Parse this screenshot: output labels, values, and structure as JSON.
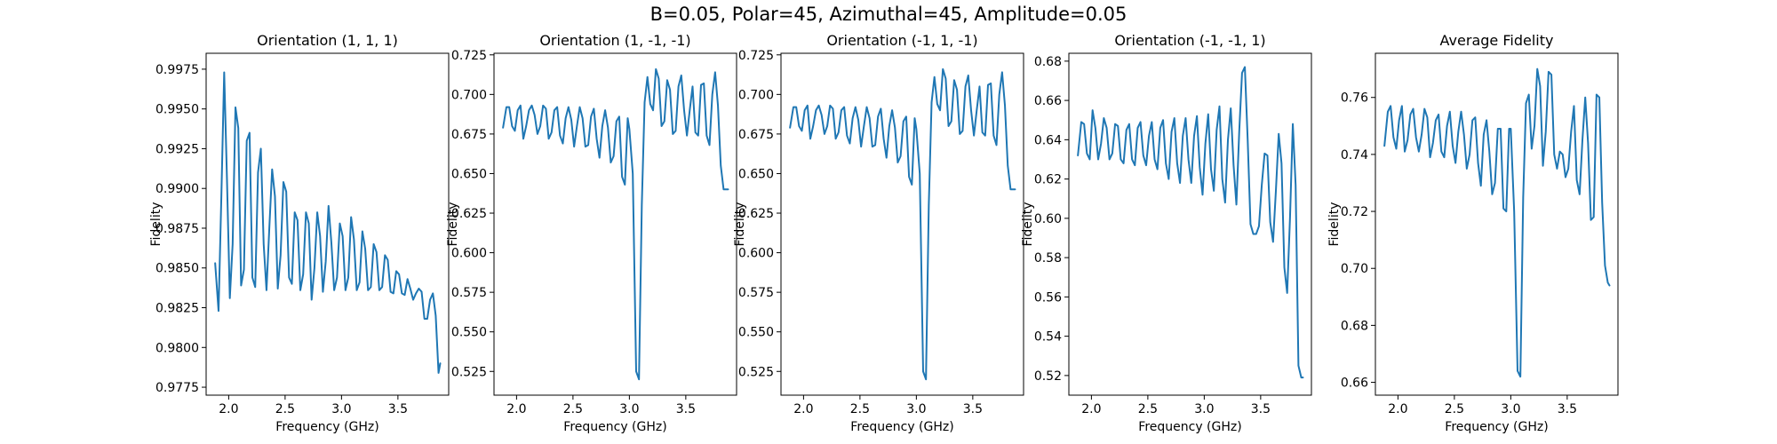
{
  "figure": {
    "title": "B=0.05, Polar=45, Azimuthal=45, Amplitude=0.05"
  },
  "chart_data": [
    {
      "type": "line",
      "title": "Orientation (1, 1, 1)",
      "xlabel": "Frequency (GHz)",
      "ylabel": "Fidelity",
      "xlim": [
        1.8,
        3.95
      ],
      "ylim": [
        0.977,
        0.9985
      ],
      "xticks": [
        2.0,
        2.5,
        3.0,
        3.5
      ],
      "xtick_labels": [
        "2.0",
        "2.5",
        "3.0",
        "3.5"
      ],
      "yticks": [
        0.9775,
        0.98,
        0.9825,
        0.985,
        0.9875,
        0.99,
        0.9925,
        0.995,
        0.9975
      ],
      "ytick_labels": [
        "0.9775",
        "0.9800",
        "0.9825",
        "0.9850",
        "0.9875",
        "0.9900",
        "0.9925",
        "0.9950",
        "0.9975"
      ],
      "grid": false,
      "color": "#1f77b4",
      "series": [
        {
          "x": [
            1.88,
            1.91,
            1.935,
            1.96,
            1.985,
            2.01,
            2.035,
            2.06,
            2.085,
            2.11,
            2.135,
            2.16,
            2.185,
            2.21,
            2.235,
            2.26,
            2.285,
            2.31,
            2.335,
            2.36,
            2.385,
            2.41,
            2.435,
            2.46,
            2.485,
            2.51,
            2.535,
            2.56,
            2.585,
            2.61,
            2.635,
            2.66,
            2.685,
            2.71,
            2.735,
            2.76,
            2.785,
            2.81,
            2.835,
            2.86,
            2.885,
            2.91,
            2.935,
            2.96,
            2.985,
            3.01,
            3.035,
            3.06,
            3.085,
            3.11,
            3.135,
            3.16,
            3.185,
            3.21,
            3.235,
            3.26,
            3.285,
            3.31,
            3.335,
            3.36,
            3.385,
            3.41,
            3.435,
            3.46,
            3.485,
            3.51,
            3.535,
            3.56,
            3.585,
            3.61,
            3.635,
            3.66,
            3.685,
            3.71,
            3.735,
            3.76,
            3.785,
            3.81,
            3.835,
            3.86,
            3.875
          ],
          "y": [
            0.9853,
            0.9823,
            0.9895,
            0.9973,
            0.9905,
            0.9831,
            0.9865,
            0.9951,
            0.9938,
            0.9839,
            0.9849,
            0.993,
            0.9935,
            0.9844,
            0.9838,
            0.991,
            0.9925,
            0.9865,
            0.9836,
            0.9875,
            0.9912,
            0.9895,
            0.9837,
            0.9858,
            0.9904,
            0.9898,
            0.9844,
            0.984,
            0.9885,
            0.988,
            0.9836,
            0.9846,
            0.9885,
            0.9878,
            0.983,
            0.985,
            0.9885,
            0.987,
            0.9835,
            0.9854,
            0.9889,
            0.9866,
            0.9836,
            0.9844,
            0.9878,
            0.987,
            0.9836,
            0.9844,
            0.9882,
            0.9868,
            0.9836,
            0.9841,
            0.9873,
            0.9862,
            0.9836,
            0.9838,
            0.9865,
            0.986,
            0.9836,
            0.9838,
            0.9858,
            0.9855,
            0.9835,
            0.9834,
            0.9848,
            0.9846,
            0.9834,
            0.9833,
            0.9843,
            0.9837,
            0.983,
            0.9834,
            0.9837,
            0.9835,
            0.9818,
            0.9818,
            0.983,
            0.9834,
            0.982,
            0.9784,
            0.979
          ]
        }
      ]
    },
    {
      "type": "line",
      "title": "Orientation (1, -1, -1)",
      "xlabel": "Frequency (GHz)",
      "ylabel": "Fidelity",
      "xlim": [
        1.8,
        3.95
      ],
      "ylim": [
        0.51,
        0.726
      ],
      "xticks": [
        2.0,
        2.5,
        3.0,
        3.5
      ],
      "xtick_labels": [
        "2.0",
        "2.5",
        "3.0",
        "3.5"
      ],
      "yticks": [
        0.525,
        0.55,
        0.575,
        0.6,
        0.625,
        0.65,
        0.675,
        0.7,
        0.725
      ],
      "ytick_labels": [
        "0.525",
        "0.550",
        "0.575",
        "0.600",
        "0.625",
        "0.650",
        "0.675",
        "0.700",
        "0.725"
      ],
      "grid": false,
      "color": "#1f77b4",
      "series": [
        {
          "x": [
            1.88,
            1.91,
            1.935,
            1.96,
            1.985,
            2.01,
            2.035,
            2.06,
            2.085,
            2.11,
            2.135,
            2.16,
            2.185,
            2.21,
            2.235,
            2.26,
            2.285,
            2.31,
            2.335,
            2.36,
            2.385,
            2.41,
            2.435,
            2.46,
            2.485,
            2.51,
            2.535,
            2.56,
            2.585,
            2.61,
            2.635,
            2.66,
            2.685,
            2.71,
            2.735,
            2.76,
            2.785,
            2.81,
            2.835,
            2.86,
            2.885,
            2.91,
            2.935,
            2.96,
            2.985,
            3.0,
            3.03,
            3.06,
            3.085,
            3.11,
            3.135,
            3.16,
            3.185,
            3.21,
            3.235,
            3.26,
            3.285,
            3.31,
            3.335,
            3.36,
            3.385,
            3.41,
            3.435,
            3.46,
            3.485,
            3.51,
            3.535,
            3.56,
            3.585,
            3.61,
            3.635,
            3.66,
            3.685,
            3.71,
            3.735,
            3.76,
            3.785,
            3.81,
            3.835,
            3.86,
            3.875
          ],
          "y": [
            0.679,
            0.692,
            0.692,
            0.68,
            0.677,
            0.69,
            0.693,
            0.672,
            0.68,
            0.69,
            0.693,
            0.687,
            0.675,
            0.68,
            0.693,
            0.691,
            0.672,
            0.676,
            0.69,
            0.692,
            0.674,
            0.669,
            0.685,
            0.692,
            0.684,
            0.667,
            0.68,
            0.692,
            0.685,
            0.667,
            0.668,
            0.686,
            0.691,
            0.672,
            0.66,
            0.68,
            0.69,
            0.679,
            0.657,
            0.661,
            0.683,
            0.686,
            0.648,
            0.643,
            0.685,
            0.678,
            0.65,
            0.525,
            0.52,
            0.63,
            0.695,
            0.711,
            0.694,
            0.69,
            0.716,
            0.71,
            0.68,
            0.683,
            0.709,
            0.703,
            0.675,
            0.677,
            0.705,
            0.712,
            0.69,
            0.674,
            0.69,
            0.705,
            0.676,
            0.674,
            0.706,
            0.707,
            0.674,
            0.668,
            0.7,
            0.714,
            0.693,
            0.655,
            0.64,
            0.64,
            0.64
          ]
        }
      ]
    },
    {
      "type": "line",
      "title": "Orientation (-1, 1, -1)",
      "xlabel": "Frequency (GHz)",
      "ylabel": "Fidelity",
      "xlim": [
        1.8,
        3.95
      ],
      "ylim": [
        0.51,
        0.726
      ],
      "xticks": [
        2.0,
        2.5,
        3.0,
        3.5
      ],
      "xtick_labels": [
        "2.0",
        "2.5",
        "3.0",
        "3.5"
      ],
      "yticks": [
        0.525,
        0.55,
        0.575,
        0.6,
        0.625,
        0.65,
        0.675,
        0.7,
        0.725
      ],
      "ytick_labels": [
        "0.525",
        "0.550",
        "0.575",
        "0.600",
        "0.625",
        "0.650",
        "0.675",
        "0.700",
        "0.725"
      ],
      "grid": false,
      "color": "#1f77b4",
      "series": [
        {
          "x": [
            1.88,
            1.91,
            1.935,
            1.96,
            1.985,
            2.01,
            2.035,
            2.06,
            2.085,
            2.11,
            2.135,
            2.16,
            2.185,
            2.21,
            2.235,
            2.26,
            2.285,
            2.31,
            2.335,
            2.36,
            2.385,
            2.41,
            2.435,
            2.46,
            2.485,
            2.51,
            2.535,
            2.56,
            2.585,
            2.61,
            2.635,
            2.66,
            2.685,
            2.71,
            2.735,
            2.76,
            2.785,
            2.81,
            2.835,
            2.86,
            2.885,
            2.91,
            2.935,
            2.96,
            2.985,
            3.0,
            3.03,
            3.06,
            3.085,
            3.11,
            3.135,
            3.16,
            3.185,
            3.21,
            3.235,
            3.26,
            3.285,
            3.31,
            3.335,
            3.36,
            3.385,
            3.41,
            3.435,
            3.46,
            3.485,
            3.51,
            3.535,
            3.56,
            3.585,
            3.61,
            3.635,
            3.66,
            3.685,
            3.71,
            3.735,
            3.76,
            3.785,
            3.81,
            3.835,
            3.86,
            3.875
          ],
          "y": [
            0.679,
            0.692,
            0.692,
            0.68,
            0.677,
            0.69,
            0.693,
            0.672,
            0.68,
            0.69,
            0.693,
            0.687,
            0.675,
            0.68,
            0.693,
            0.691,
            0.672,
            0.676,
            0.69,
            0.692,
            0.674,
            0.669,
            0.685,
            0.692,
            0.684,
            0.667,
            0.68,
            0.692,
            0.685,
            0.667,
            0.668,
            0.686,
            0.691,
            0.672,
            0.66,
            0.68,
            0.69,
            0.679,
            0.657,
            0.661,
            0.683,
            0.686,
            0.648,
            0.643,
            0.685,
            0.678,
            0.65,
            0.525,
            0.52,
            0.63,
            0.695,
            0.711,
            0.694,
            0.69,
            0.716,
            0.71,
            0.68,
            0.683,
            0.709,
            0.703,
            0.675,
            0.677,
            0.705,
            0.712,
            0.69,
            0.674,
            0.69,
            0.705,
            0.676,
            0.674,
            0.706,
            0.707,
            0.674,
            0.668,
            0.7,
            0.714,
            0.693,
            0.655,
            0.64,
            0.64,
            0.64
          ]
        }
      ]
    },
    {
      "type": "line",
      "title": "Orientation (-1, -1, 1)",
      "xlabel": "Frequency (GHz)",
      "ylabel": "Fidelity",
      "xlim": [
        1.8,
        3.95
      ],
      "ylim": [
        0.51,
        0.684
      ],
      "xticks": [
        2.0,
        2.5,
        3.0,
        3.5
      ],
      "xtick_labels": [
        "2.0",
        "2.5",
        "3.0",
        "3.5"
      ],
      "yticks": [
        0.52,
        0.54,
        0.56,
        0.58,
        0.6,
        0.62,
        0.64,
        0.66,
        0.68
      ],
      "ytick_labels": [
        "0.52",
        "0.54",
        "0.56",
        "0.58",
        "0.60",
        "0.62",
        "0.64",
        "0.66",
        "0.68"
      ],
      "grid": false,
      "color": "#1f77b4",
      "series": [
        {
          "x": [
            1.88,
            1.91,
            1.935,
            1.96,
            1.985,
            2.01,
            2.035,
            2.06,
            2.085,
            2.11,
            2.135,
            2.16,
            2.185,
            2.21,
            2.235,
            2.26,
            2.285,
            2.31,
            2.335,
            2.36,
            2.385,
            2.41,
            2.435,
            2.46,
            2.485,
            2.51,
            2.535,
            2.56,
            2.585,
            2.61,
            2.635,
            2.66,
            2.685,
            2.71,
            2.735,
            2.76,
            2.785,
            2.81,
            2.835,
            2.86,
            2.885,
            2.91,
            2.935,
            2.96,
            2.985,
            3.01,
            3.035,
            3.06,
            3.085,
            3.11,
            3.135,
            3.16,
            3.185,
            3.21,
            3.235,
            3.26,
            3.285,
            3.31,
            3.335,
            3.36,
            3.385,
            3.41,
            3.435,
            3.46,
            3.485,
            3.51,
            3.535,
            3.56,
            3.585,
            3.61,
            3.635,
            3.66,
            3.685,
            3.71,
            3.735,
            3.76,
            3.785,
            3.81,
            3.835,
            3.86,
            3.875
          ],
          "y": [
            0.632,
            0.649,
            0.648,
            0.633,
            0.63,
            0.655,
            0.646,
            0.63,
            0.638,
            0.651,
            0.646,
            0.63,
            0.633,
            0.648,
            0.647,
            0.63,
            0.628,
            0.645,
            0.648,
            0.63,
            0.627,
            0.646,
            0.649,
            0.632,
            0.627,
            0.642,
            0.649,
            0.63,
            0.625,
            0.646,
            0.65,
            0.628,
            0.62,
            0.644,
            0.651,
            0.628,
            0.618,
            0.642,
            0.651,
            0.63,
            0.618,
            0.642,
            0.652,
            0.626,
            0.612,
            0.638,
            0.653,
            0.625,
            0.614,
            0.645,
            0.657,
            0.62,
            0.608,
            0.64,
            0.656,
            0.627,
            0.607,
            0.644,
            0.674,
            0.677,
            0.64,
            0.597,
            0.592,
            0.592,
            0.596,
            0.617,
            0.633,
            0.632,
            0.598,
            0.588,
            0.614,
            0.643,
            0.628,
            0.575,
            0.562,
            0.6,
            0.648,
            0.617,
            0.525,
            0.519,
            0.519
          ]
        }
      ]
    },
    {
      "type": "line",
      "title": "Average Fidelity",
      "xlabel": "Frequency (GHz)",
      "ylabel": "Fidelity",
      "xlim": [
        1.8,
        3.95
      ],
      "ylim": [
        0.6555,
        0.7755
      ],
      "xticks": [
        2.0,
        2.5,
        3.0,
        3.5
      ],
      "xtick_labels": [
        "2.0",
        "2.5",
        "3.0",
        "3.5"
      ],
      "yticks": [
        0.66,
        0.68,
        0.7,
        0.72,
        0.74,
        0.76
      ],
      "ytick_labels": [
        "0.66",
        "0.68",
        "0.70",
        "0.72",
        "0.74",
        "0.76"
      ],
      "grid": false,
      "color": "#1f77b4",
      "series": [
        {
          "x": [
            1.88,
            1.91,
            1.935,
            1.96,
            1.985,
            2.01,
            2.035,
            2.06,
            2.085,
            2.11,
            2.135,
            2.16,
            2.185,
            2.21,
            2.235,
            2.26,
            2.285,
            2.31,
            2.335,
            2.36,
            2.385,
            2.41,
            2.435,
            2.46,
            2.485,
            2.51,
            2.535,
            2.56,
            2.585,
            2.61,
            2.635,
            2.66,
            2.685,
            2.71,
            2.735,
            2.76,
            2.785,
            2.81,
            2.835,
            2.86,
            2.885,
            2.91,
            2.935,
            2.96,
            2.985,
            3.0,
            3.03,
            3.06,
            3.085,
            3.11,
            3.135,
            3.16,
            3.185,
            3.21,
            3.235,
            3.26,
            3.285,
            3.31,
            3.335,
            3.36,
            3.385,
            3.41,
            3.435,
            3.46,
            3.485,
            3.51,
            3.535,
            3.56,
            3.585,
            3.61,
            3.635,
            3.66,
            3.685,
            3.71,
            3.735,
            3.76,
            3.785,
            3.81,
            3.835,
            3.86,
            3.875
          ],
          "y": [
            0.743,
            0.755,
            0.757,
            0.746,
            0.742,
            0.752,
            0.757,
            0.741,
            0.745,
            0.754,
            0.756,
            0.746,
            0.741,
            0.747,
            0.756,
            0.753,
            0.739,
            0.744,
            0.752,
            0.754,
            0.741,
            0.739,
            0.75,
            0.755,
            0.743,
            0.737,
            0.748,
            0.755,
            0.747,
            0.735,
            0.74,
            0.752,
            0.753,
            0.737,
            0.729,
            0.747,
            0.752,
            0.741,
            0.726,
            0.73,
            0.749,
            0.749,
            0.721,
            0.72,
            0.749,
            0.749,
            0.72,
            0.664,
            0.662,
            0.725,
            0.758,
            0.761,
            0.742,
            0.75,
            0.77,
            0.764,
            0.736,
            0.748,
            0.769,
            0.768,
            0.74,
            0.735,
            0.741,
            0.74,
            0.732,
            0.735,
            0.748,
            0.757,
            0.731,
            0.726,
            0.745,
            0.76,
            0.744,
            0.717,
            0.718,
            0.761,
            0.76,
            0.723,
            0.701,
            0.695,
            0.694
          ]
        }
      ]
    }
  ]
}
